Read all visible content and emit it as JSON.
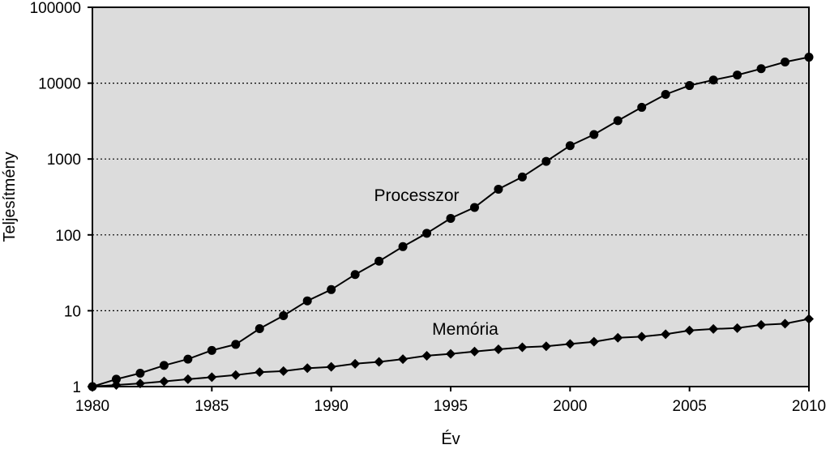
{
  "chart_data": {
    "type": "line",
    "xlabel": "Év",
    "ylabel": "Teljesítmény",
    "x_scale": "linear",
    "y_scale": "log",
    "xlim": [
      1980,
      2010
    ],
    "ylim": [
      1,
      100000
    ],
    "x_ticks": [
      1980,
      1985,
      1990,
      1995,
      2000,
      2005,
      2010
    ],
    "y_ticks": [
      1,
      10,
      100,
      1000,
      10000,
      100000
    ],
    "x_tick_labels": [
      "1980",
      "1985",
      "1990",
      "1995",
      "2000",
      "2005",
      "2010"
    ],
    "y_tick_labels": [
      "1",
      "10",
      "100",
      "1000",
      "10000",
      "100000"
    ],
    "grid": "horizontal dotted",
    "plot_background": "#dcdcdc",
    "x": [
      1980,
      1981,
      1982,
      1983,
      1984,
      1985,
      1986,
      1987,
      1988,
      1989,
      1990,
      1991,
      1992,
      1993,
      1994,
      1995,
      1996,
      1997,
      1998,
      1999,
      2000,
      2001,
      2002,
      2003,
      2004,
      2005,
      2006,
      2007,
      2008,
      2009,
      2010
    ],
    "series": [
      {
        "name": "Processzor",
        "marker": "circle",
        "values": [
          1,
          1.25,
          1.5,
          1.9,
          2.3,
          3,
          3.6,
          5.8,
          8.6,
          13.5,
          19,
          30,
          45,
          70,
          105,
          165,
          230,
          400,
          580,
          930,
          1500,
          2100,
          3200,
          4800,
          7100,
          9300,
          11000,
          12800,
          15500,
          19000,
          22000
        ]
      },
      {
        "name": "Memória",
        "marker": "diamond",
        "values": [
          1,
          1.05,
          1.1,
          1.17,
          1.25,
          1.33,
          1.42,
          1.55,
          1.6,
          1.75,
          1.82,
          2.0,
          2.12,
          2.3,
          2.55,
          2.7,
          2.9,
          3.1,
          3.3,
          3.4,
          3.65,
          3.9,
          4.4,
          4.55,
          4.9,
          5.5,
          5.75,
          5.9,
          6.5,
          6.75,
          7.8
        ]
      }
    ]
  }
}
